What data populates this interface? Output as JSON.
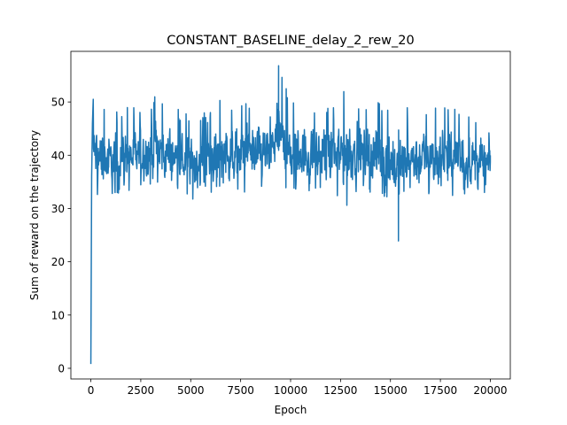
{
  "chart_data": {
    "type": "line",
    "title": "CONSTANT_BASELINE_delay_2_rew_20",
    "xlabel": "Epoch",
    "ylabel": "Sum of reward on the trajectory",
    "xlim": [
      -1000,
      21000
    ],
    "ylim": [
      -2.0,
      59.5
    ],
    "xticks": [
      0,
      2500,
      5000,
      7500,
      10000,
      12500,
      15000,
      17500,
      20000
    ],
    "xtick_labels": [
      "0",
      "2500",
      "5000",
      "7500",
      "10000",
      "12500",
      "15000",
      "17500",
      "20000"
    ],
    "yticks": [
      0,
      10,
      20,
      30,
      40,
      50
    ],
    "ytick_labels": [
      "0",
      "10",
      "20",
      "30",
      "40",
      "50"
    ],
    "grid": false,
    "legend": "none",
    "series": [
      {
        "color": "#1f77b4",
        "x": [
          0,
          40,
          80,
          120,
          200,
          9400,
          15400,
          20000
        ],
        "y": [
          0.8,
          36,
          46,
          50.5,
          40,
          56.8,
          23.9,
          40
        ],
        "band": {
          "x": [
            100,
            1000,
            2000,
            3000,
            3200,
            4000,
            5000,
            6000,
            6800,
            7000,
            8000,
            9000,
            9400,
            10000,
            11000,
            12000,
            12900,
            13000,
            14000,
            15000,
            15400,
            16000,
            17000,
            18000,
            18500,
            19000,
            20000
          ],
          "low": [
            33,
            30.5,
            33,
            34,
            33,
            33,
            31,
            33,
            32,
            33,
            33,
            34,
            34,
            33,
            33,
            33,
            30,
            33,
            33,
            31,
            27,
            32,
            32,
            32,
            31,
            33,
            31
          ],
          "high": [
            50,
            49,
            49,
            50,
            51.5,
            49,
            48,
            49,
            52.5,
            50,
            50,
            49,
            56.8,
            50,
            50,
            49,
            53.5,
            51,
            50,
            50,
            50,
            49,
            49,
            49,
            49,
            48,
            47.5
          ]
        }
      }
    ]
  }
}
